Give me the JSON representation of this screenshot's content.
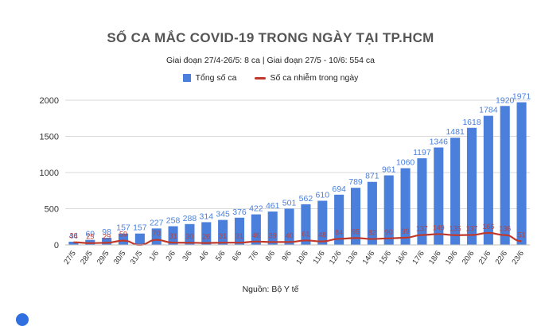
{
  "chart_data": {
    "type": "bar",
    "title": "SỐ CA MẮC COVID-19 TRONG NGÀY TẠI TP.HCM",
    "subtitle": "Giai đoạn 27/4-26/5: 8 ca  | Giai đoạn 27/5 - 10/6: 554 ca",
    "source": "Nguồn: Bộ Y tế",
    "legend_position": "top",
    "grid": true,
    "ylim": [
      0,
      2000
    ],
    "yticks": [
      0,
      500,
      1000,
      1500,
      2000
    ],
    "categories": [
      "27/5",
      "28/5",
      "29/5",
      "30/5",
      "31/5",
      "1/6",
      "2/6",
      "3/6",
      "4/6",
      "5/6",
      "6/6",
      "7/6",
      "8/6",
      "9/6",
      "10/6",
      "11/6",
      "12/6",
      "13/6",
      "14/6",
      "15/6",
      "16/6",
      "17/6",
      "18/6",
      "19/6",
      "20/6",
      "21/6",
      "22/6",
      "23/6"
    ],
    "series": [
      {
        "name": "Tổng số ca",
        "type": "bar",
        "color": "#4a7fdc",
        "values": [
          44,
          69,
          98,
          157,
          157,
          227,
          258,
          288,
          314,
          345,
          376,
          422,
          461,
          501,
          562,
          610,
          694,
          789,
          871,
          961,
          1060,
          1197,
          1346,
          1481,
          1618,
          1784,
          1920,
          1971
        ]
      },
      {
        "name": "Số ca nhiễm trong ngày",
        "type": "line",
        "color": "#c0392b",
        "values": [
          36,
          25,
          29,
          59,
          0,
          70,
          31,
          30,
          26,
          31,
          31,
          46,
          39,
          40,
          61,
          48,
          84,
          95,
          82,
          90,
          99,
          137,
          149,
          135,
          137,
          166,
          136,
          51
        ]
      }
    ]
  }
}
